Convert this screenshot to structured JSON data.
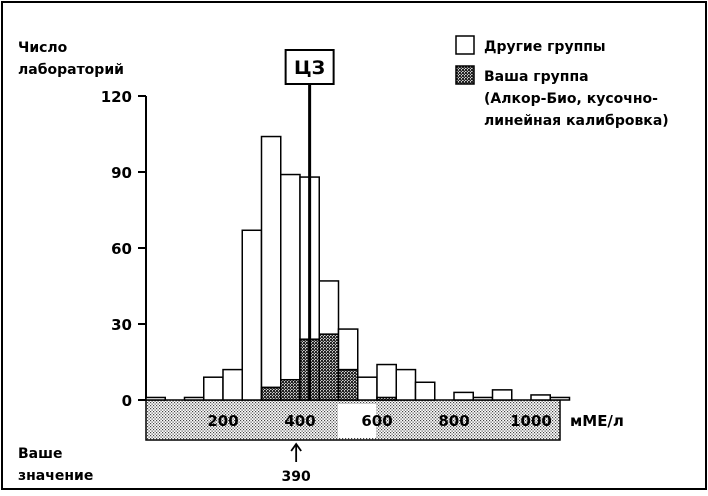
{
  "chart_data": {
    "type": "bar",
    "ylabel": [
      "Число",
      "лабораторий"
    ],
    "xunit": "мМЕ/л",
    "ylim": [
      0,
      120
    ],
    "yticks": [
      0,
      30,
      60,
      90,
      120
    ],
    "yticks_labels": [
      "0",
      "30",
      "60",
      "90",
      "120"
    ],
    "xticks": [
      200,
      400,
      600,
      800,
      1000
    ],
    "xticks_labels": [
      "200",
      "400",
      "600",
      "800",
      "1000"
    ],
    "bin_width": 50,
    "bin_starts": [
      0,
      50,
      100,
      150,
      200,
      250,
      300,
      350,
      400,
      450,
      500,
      550,
      600,
      650,
      700,
      750,
      800,
      850,
      900,
      950,
      1000,
      1050
    ],
    "series": [
      {
        "name": "Другие группы",
        "values": [
          1,
          0,
          1,
          9,
          12,
          67,
          104,
          89,
          88,
          47,
          28,
          9,
          14,
          12,
          7,
          0,
          3,
          1,
          4,
          0,
          2,
          1
        ]
      },
      {
        "name": "Ваша группа (Алкор-Био, кусочно-линейная калибровка)",
        "values": [
          0,
          0,
          0,
          0,
          0,
          0,
          5,
          8,
          24,
          26,
          12,
          0,
          1,
          0,
          0,
          0,
          0,
          0,
          0,
          0,
          0,
          0
        ]
      }
    ],
    "legend": {
      "position": "top-right",
      "items": [
        {
          "label": "Другие группы"
        },
        {
          "label": "Ваша группа",
          "extra_lines": [
            "(Алкор-Био, кусочно-",
            "линейная калибровка)"
          ]
        }
      ]
    },
    "reference_line": {
      "label": "ЦЗ",
      "value": 425
    },
    "your_value": {
      "label": [
        "Ваше",
        "значение"
      ],
      "value": 390,
      "value_label": "390"
    },
    "grid": false
  }
}
